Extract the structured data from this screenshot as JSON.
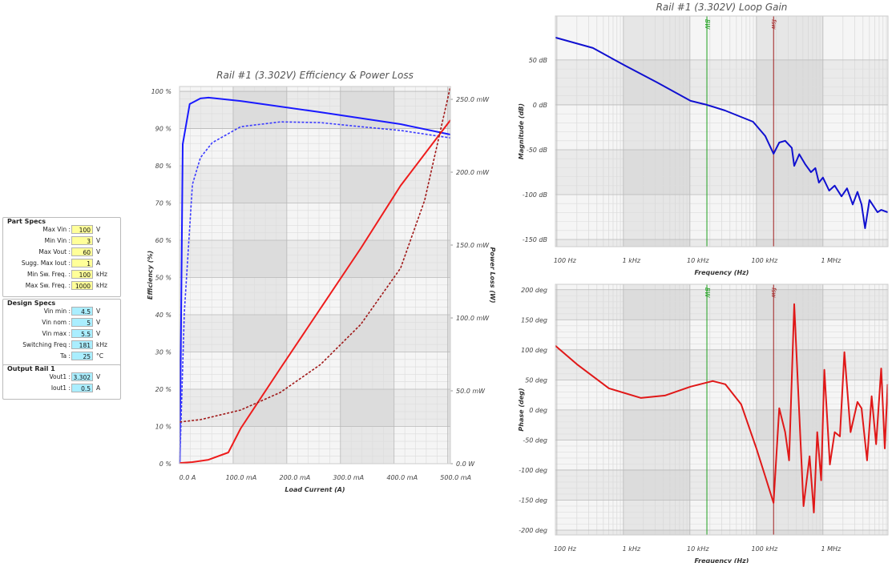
{
  "form": {
    "groups": [
      {
        "title": "Part Specs",
        "fields": [
          {
            "label": "Max Vin :",
            "value": "100",
            "unit": "V"
          },
          {
            "label": "Min Vin :",
            "value": "3",
            "unit": "V"
          },
          {
            "label": "Max Vout :",
            "value": "60",
            "unit": "V"
          },
          {
            "label": "Sugg. Max Iout :",
            "value": "1",
            "unit": "A"
          },
          {
            "label": "Min Sw. Freq. :",
            "value": "100",
            "unit": "kHz"
          },
          {
            "label": "Max Sw. Freq. :",
            "value": "1000",
            "unit": "kHz"
          }
        ]
      },
      {
        "title": "Design Specs",
        "fields": [
          {
            "label": "Vin min :",
            "value": "4.5",
            "unit": "V"
          },
          {
            "label": "Vin nom :",
            "value": "5",
            "unit": "V"
          },
          {
            "label": "Vin max :",
            "value": "5.5",
            "unit": "V"
          },
          {
            "label": "Switching Freq :",
            "value": "181",
            "unit": "kHz"
          },
          {
            "label": "Ta :",
            "value": "25",
            "unit": "°C"
          }
        ]
      },
      {
        "title": "Output Rail 1",
        "fields": [
          {
            "label": "Vout1 :",
            "value": "3.302",
            "unit": "V"
          },
          {
            "label": "Iout1 :",
            "value": "0.5",
            "unit": "A"
          }
        ]
      }
    ]
  },
  "chart_data": [
    {
      "type": "line",
      "title": "Rail #1 (3.302V) Efficiency & Power Loss",
      "xlabel": "Load Current (A)",
      "ylabel": "Efficiency (%)",
      "y2label": "Power Loss (W)",
      "xscale": "linear",
      "grid": true,
      "xlim": [
        0,
        0.505
      ],
      "xticks": [
        {
          "value": 0,
          "label": "0.0 A"
        },
        {
          "value": 0.1,
          "label": "100.0 mA"
        },
        {
          "value": 0.2,
          "label": "200.0 mA"
        },
        {
          "value": 0.3,
          "label": "300.0 mA"
        },
        {
          "value": 0.4,
          "label": "400.0 mA"
        },
        {
          "value": 0.5,
          "label": "500.0 mA"
        }
      ],
      "ylim": [
        0,
        101.3
      ],
      "yticks": [
        {
          "value": 0,
          "label": "0 %"
        },
        {
          "value": 10,
          "label": "10 %"
        },
        {
          "value": 20,
          "label": "20 %"
        },
        {
          "value": 30,
          "label": "30 %"
        },
        {
          "value": 40,
          "label": "40 %"
        },
        {
          "value": 50,
          "label": "50 %"
        },
        {
          "value": 60,
          "label": "60 %"
        },
        {
          "value": 70,
          "label": "70 %"
        },
        {
          "value": 80,
          "label": "80 %"
        },
        {
          "value": 90,
          "label": "90 %"
        },
        {
          "value": 100,
          "label": "100 %"
        }
      ],
      "y2lim": [
        0,
        0.2588
      ],
      "y2ticks": [
        {
          "value": 0,
          "label": "0.0 W"
        },
        {
          "value": 0.05,
          "label": "50.0 mW"
        },
        {
          "value": 0.1,
          "label": "100.0 mW"
        },
        {
          "value": 0.15,
          "label": "150.0 mW"
        },
        {
          "value": 0.2,
          "label": "200.0 mW"
        },
        {
          "value": 0.25,
          "label": "250.0 mW"
        }
      ],
      "series": [
        {
          "color": "#1a1aff",
          "linestyle": "solid",
          "x": [
            0.0005,
            0.006,
            0.019,
            0.039,
            0.054,
            0.114,
            0.263,
            0.412,
            0.505
          ],
          "values": [
            0,
            85.8,
            96.6,
            98.1,
            98.3,
            97.4,
            94.4,
            91.2,
            88.4
          ]
        },
        {
          "color": "#3a3aff",
          "linestyle": "dashed",
          "x": [
            0.0005,
            0.009,
            0.024,
            0.039,
            0.061,
            0.114,
            0.188,
            0.263,
            0.338,
            0.412,
            0.505
          ],
          "values": [
            0,
            40.6,
            75,
            82.2,
            86.2,
            90.5,
            91.8,
            91.6,
            90.5,
            89.5,
            87.5
          ]
        },
        {
          "color": "#ee1c1c",
          "linestyle": "solid",
          "axis": "y2",
          "x": [
            0.0005,
            0.024,
            0.054,
            0.091,
            0.114,
            0.188,
            0.263,
            0.338,
            0.412,
            0.505
          ],
          "values": [
            0.0005,
            0.0011,
            0.0027,
            0.0077,
            0.0242,
            0.0654,
            0.1066,
            0.1478,
            0.1907,
            0.2357
          ]
        },
        {
          "color": "#a01818",
          "linestyle": "dashed",
          "axis": "y2",
          "x": [
            0.0005,
            0.039,
            0.114,
            0.188,
            0.263,
            0.338,
            0.412,
            0.457,
            0.505
          ],
          "values": [
            0.0286,
            0.0302,
            0.0368,
            0.0489,
            0.0681,
            0.0956,
            0.1341,
            0.1808,
            0.2588
          ]
        }
      ]
    },
    {
      "type": "line",
      "title": "Rail #1 (3.302V) Loop Gain",
      "xlabel": "Frequency (Hz)",
      "ylabel": "Magnitude (dB)",
      "xscale": "log",
      "grid": true,
      "xlim": [
        95,
        9500000
      ],
      "xticks": [
        {
          "value": 100,
          "label": "100 Hz"
        },
        {
          "value": 1000,
          "label": "1 kHz"
        },
        {
          "value": 10000,
          "label": "10 kHz"
        },
        {
          "value": 100000,
          "label": "100 kHz"
        },
        {
          "value": 1000000,
          "label": "1 MHz"
        }
      ],
      "ylim": [
        -158,
        99
      ],
      "yticks": [
        {
          "value": 50,
          "label": "50 dB"
        },
        {
          "value": 0,
          "label": "0 dB"
        },
        {
          "value": -50,
          "label": "-50 dB"
        },
        {
          "value": -100,
          "label": "-100 dB"
        },
        {
          "value": -150,
          "label": "-150 dB"
        }
      ],
      "markers": [
        {
          "label": "BW",
          "x": 18000,
          "color": "#20a020"
        },
        {
          "label": "fsw",
          "x": 181000,
          "color": "#a02020"
        }
      ],
      "series": [
        {
          "color": "#1010d0",
          "linestyle": "solid",
          "x": [
            95,
            348,
            1060,
            3200,
            10200,
            18000,
            33800,
            89000,
            136000,
            181000,
            220000,
            270000,
            340000,
            370000,
            440000,
            540000,
            660000,
            770000,
            870000,
            1000000,
            1240000,
            1500000,
            1900000,
            2300000,
            2800000,
            3300000,
            3800000,
            4300000,
            5000000,
            6600000,
            7500000,
            9400000
          ],
          "values": [
            75,
            63.4,
            43.8,
            25,
            4.5,
            0,
            -6.3,
            -18.8,
            -34.8,
            -54.5,
            -42,
            -40,
            -48,
            -68,
            -55,
            -66,
            -75,
            -70.5,
            -86.6,
            -81,
            -95.5,
            -90,
            -102,
            -93,
            -111,
            -97,
            -111,
            -137.5,
            -106,
            -119.6,
            -117,
            -119.6
          ]
        }
      ]
    },
    {
      "type": "line",
      "xlabel": "Frequency (Hz)",
      "ylabel": "Phase (deg)",
      "xscale": "log",
      "grid": true,
      "xlim": [
        95,
        9500000
      ],
      "xticks": [
        {
          "value": 100,
          "label": "100 Hz"
        },
        {
          "value": 1000,
          "label": "1 kHz"
        },
        {
          "value": 10000,
          "label": "10 kHz"
        },
        {
          "value": 100000,
          "label": "100 kHz"
        },
        {
          "value": 1000000,
          "label": "1 MHz"
        }
      ],
      "ylim": [
        -208,
        209
      ],
      "yticks": [
        {
          "value": 200,
          "label": "200 deg"
        },
        {
          "value": 150,
          "label": "150 deg"
        },
        {
          "value": 100,
          "label": "100 deg"
        },
        {
          "value": 50,
          "label": "50 deg"
        },
        {
          "value": 0,
          "label": "0 deg"
        },
        {
          "value": -50,
          "label": "-50 deg"
        },
        {
          "value": -100,
          "label": "-100 deg"
        },
        {
          "value": -150,
          "label": "-150 deg"
        },
        {
          "value": -200,
          "label": "-200 deg"
        }
      ],
      "markers": [
        {
          "label": "BW",
          "x": 18000,
          "color": "#20a020"
        },
        {
          "label": "fsw",
          "x": 181000,
          "color": "#a02020"
        }
      ],
      "series": [
        {
          "color": "#e01818",
          "linestyle": "solid",
          "x": [
            95,
            200,
            606,
            1840,
            4200,
            10200,
            22000,
            34000,
            59000,
            100000,
            136000,
            181000,
            220000,
            270000,
            310000,
            370000,
            510000,
            630000,
            730000,
            820000,
            940000,
            1050000,
            1270000,
            1500000,
            1800000,
            2100000,
            2600000,
            3300000,
            3800000,
            4600000,
            5400000,
            6300000,
            7500000,
            8500000,
            9400000
          ],
          "values": [
            106.7,
            76,
            36,
            20,
            24,
            38.7,
            48,
            42.7,
            9.3,
            -64,
            -110.7,
            -154.7,
            2.7,
            -37,
            -84,
            176,
            -160,
            -77,
            -170.7,
            -37,
            -117,
            66.7,
            -90.7,
            -37,
            -44,
            96,
            -37,
            13.3,
            2.7,
            -84,
            22.7,
            -57,
            69,
            -64,
            42.7
          ]
        }
      ]
    }
  ]
}
